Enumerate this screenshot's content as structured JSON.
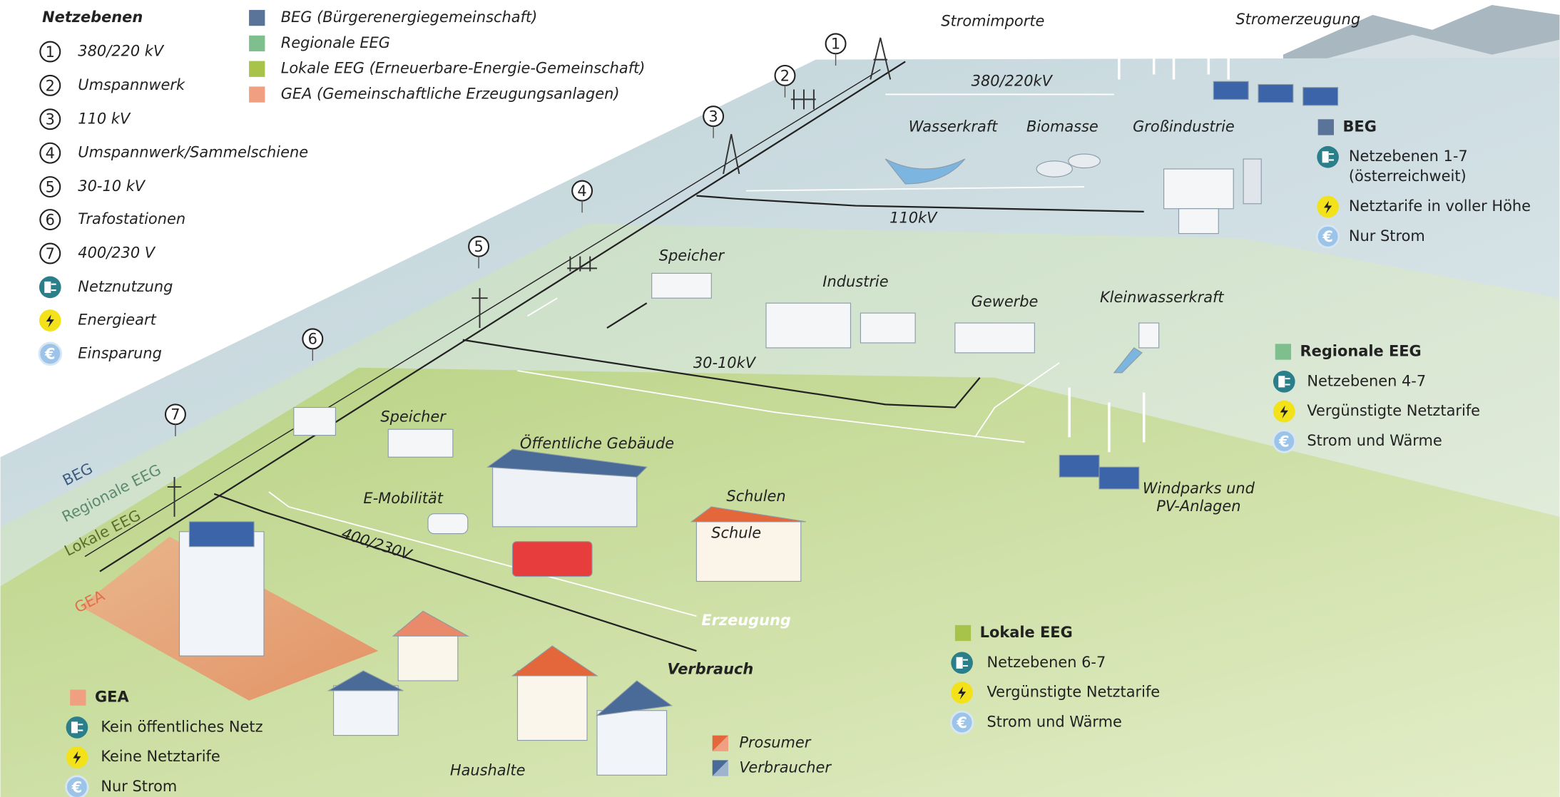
{
  "legend": {
    "title": "Netzebenen",
    "levels": [
      {
        "number": 1,
        "label": "380/220 kV"
      },
      {
        "number": 2,
        "label": "Umspannwerk"
      },
      {
        "number": 3,
        "label": "110 kV"
      },
      {
        "number": 4,
        "label": "Umspannwerk/Sammelschiene"
      },
      {
        "number": 5,
        "label": "30-10 kV"
      },
      {
        "number": 6,
        "label": "Trafostationen"
      },
      {
        "number": 7,
        "label": "400/230 V"
      }
    ],
    "icons": [
      "Netznutzung",
      "Energieart",
      "Einsparung"
    ],
    "euro_glyph": "€"
  },
  "communities": [
    "BEG (Bürgerenergiegemeinschaft)",
    "Regionale EEG",
    "Lokale EEG (Erneuerbare-Energie-Gemeinschaft)",
    "GEA (Gemeinschaftliche Erzeugungsanlagen)"
  ],
  "map": {
    "labels": [
      "Stromimporte",
      "Stromerzeugung",
      "380/220kV",
      "Wasserkraft",
      "Biomasse",
      "Großindustrie",
      "110kV",
      "Speicher",
      "Industrie",
      "Gewerbe",
      "Kleinwasserkraft",
      "30-10kV",
      "Speicher",
      "Öffentliche Gebäude",
      "E-Mobilität",
      "Schulen",
      "Schule",
      "400/230V",
      "Erzeugung",
      "Verbrauch",
      "Haushalte"
    ],
    "windparks": [
      "Windparks und",
      "PV-Anlagen"
    ],
    "layers": [
      "BEG",
      "Regionale EEG",
      "Lokale EEG",
      "GEA"
    ]
  },
  "info_boxes": [
    {
      "title": "BEG",
      "items": [
        [
          "Netzebenen 1-7",
          "(österreichweit)"
        ],
        [
          "Netztarife in voller Höhe"
        ],
        [
          "Nur Strom"
        ]
      ]
    },
    {
      "title": "Regionale EEG",
      "items": [
        [
          "Netzebenen 4-7"
        ],
        [
          "Vergünstigte Netztarife"
        ],
        [
          "Strom und Wärme"
        ]
      ]
    },
    {
      "title": "Lokale EEG",
      "items": [
        [
          "Netzebenen 6-7"
        ],
        [
          "Vergünstigte Netztarife"
        ],
        [
          "Strom und Wärme"
        ]
      ]
    },
    {
      "title": "GEA",
      "items": [
        [
          "Kein öffentliches Netz"
        ],
        [
          "Keine Netztarife"
        ],
        [
          "Nur Strom"
        ]
      ]
    }
  ],
  "consumers": [
    "Prosumer",
    "Verbraucher"
  ]
}
